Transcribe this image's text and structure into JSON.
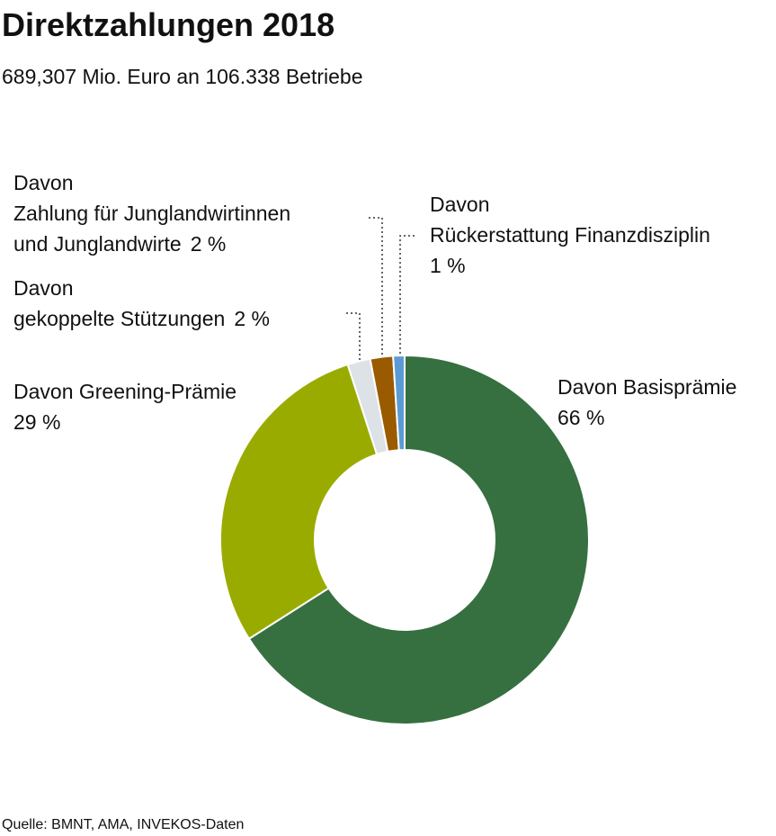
{
  "chart_data": {
    "type": "donut",
    "title": "Direktzahlungen 2018",
    "subtitle": "689,307 Mio. Euro an 106.338 Betriebe",
    "categories": [
      [
        "Davon Basisprämie"
      ],
      [
        "Davon Greening-Prämie"
      ],
      [
        "Davon",
        "gekoppelte Stützungen"
      ],
      [
        "Davon",
        "Zahlung für Junglandwirtinnen",
        "und Junglandwirte"
      ],
      [
        "Davon",
        "Rückerstattung Finanzdisziplin"
      ]
    ],
    "values": [
      66,
      29,
      2,
      2,
      1
    ],
    "value_labels": [
      "66 %",
      "29 %",
      "2 %",
      "2 %",
      "1 %"
    ],
    "colors": [
      "#367040",
      "#9aab00",
      "#dde2e6",
      "#9a5a00",
      "#5b9bd5"
    ],
    "source": "Quelle: BMNT, AMA, INVEKOS-Daten"
  }
}
